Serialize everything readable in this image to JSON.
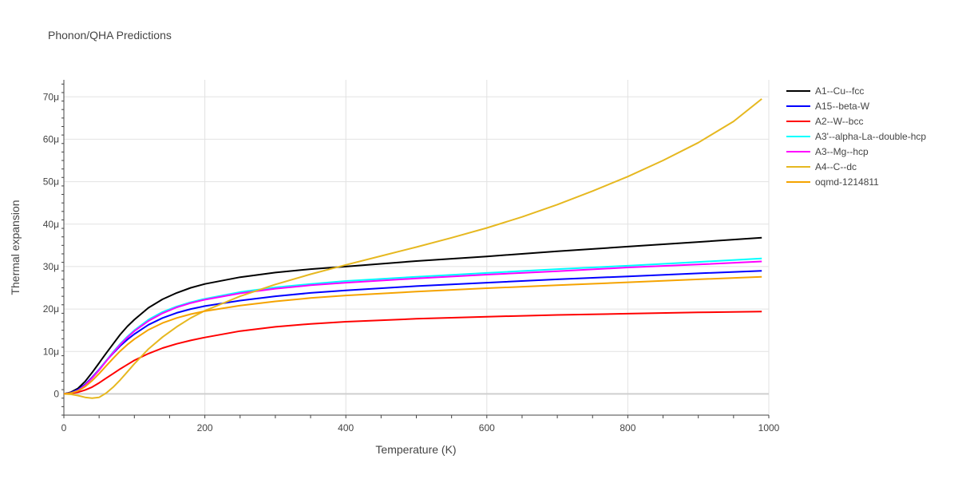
{
  "chart_data": {
    "type": "line",
    "title": "Phonon/QHA Predictions",
    "xlabel": "Temperature (K)",
    "ylabel": "Thermal expansion",
    "xlim": [
      0,
      1000
    ],
    "ylim": [
      -5,
      74
    ],
    "x_ticks": [
      0,
      200,
      400,
      600,
      800,
      1000
    ],
    "y_ticks": [
      0,
      10,
      20,
      30,
      40,
      50,
      60,
      70
    ],
    "y_tick_labels": [
      "0",
      "10μ",
      "20μ",
      "30μ",
      "40μ",
      "50μ",
      "60μ",
      "70μ"
    ],
    "grid": true,
    "legend_position": "right",
    "series": [
      {
        "name": "A1--Cu--fcc",
        "color": "#000000",
        "x": [
          0,
          10,
          20,
          30,
          40,
          50,
          60,
          70,
          80,
          90,
          100,
          120,
          140,
          160,
          180,
          200,
          250,
          300,
          350,
          400,
          500,
          600,
          700,
          800,
          900,
          990
        ],
        "y": [
          0,
          0.4,
          1.3,
          2.9,
          5,
          7.3,
          9.6,
          11.8,
          14,
          15.9,
          17.5,
          20.3,
          22.3,
          23.8,
          25,
          25.9,
          27.5,
          28.6,
          29.4,
          30.0,
          31.3,
          32.4,
          33.6,
          34.7,
          35.8,
          36.8
        ]
      },
      {
        "name": "A15--beta-W",
        "color": "#0000ff",
        "x": [
          0,
          10,
          20,
          30,
          40,
          50,
          60,
          70,
          80,
          90,
          100,
          120,
          140,
          160,
          180,
          200,
          250,
          300,
          350,
          400,
          500,
          600,
          700,
          800,
          900,
          990
        ],
        "y": [
          0,
          0.3,
          1.0,
          2.2,
          3.9,
          5.8,
          7.8,
          9.6,
          11.3,
          12.8,
          14.1,
          16.3,
          17.9,
          19.1,
          20.0,
          20.7,
          22.0,
          23.0,
          23.8,
          24.4,
          25.4,
          26.2,
          27.0,
          27.7,
          28.4,
          29.0
        ]
      },
      {
        "name": "A2--W--bcc",
        "color": "#ff0000",
        "x": [
          0,
          10,
          20,
          30,
          40,
          50,
          60,
          70,
          80,
          90,
          100,
          120,
          140,
          160,
          180,
          200,
          250,
          300,
          350,
          400,
          500,
          600,
          700,
          800,
          900,
          990
        ],
        "y": [
          0,
          0.1,
          0.4,
          0.9,
          1.6,
          2.6,
          3.7,
          4.8,
          5.9,
          6.9,
          7.9,
          9.5,
          10.8,
          11.8,
          12.6,
          13.3,
          14.8,
          15.8,
          16.5,
          17.0,
          17.7,
          18.2,
          18.6,
          18.9,
          19.2,
          19.4
        ]
      },
      {
        "name": "A3'--alpha-La--double-hcp",
        "color": "#00ffff",
        "x": [
          0,
          10,
          20,
          30,
          40,
          50,
          60,
          70,
          80,
          90,
          100,
          120,
          140,
          160,
          180,
          200,
          250,
          300,
          350,
          400,
          500,
          600,
          700,
          800,
          900,
          990
        ],
        "y": [
          0,
          0.2,
          0.8,
          2.0,
          3.7,
          5.7,
          7.8,
          9.9,
          11.8,
          13.5,
          15.0,
          17.5,
          19.3,
          20.6,
          21.6,
          22.4,
          24.0,
          25.1,
          25.9,
          26.6,
          27.6,
          28.5,
          29.4,
          30.2,
          31.1,
          31.9
        ]
      },
      {
        "name": "A3--Mg--hcp",
        "color": "#ff00ff",
        "x": [
          0,
          10,
          20,
          30,
          40,
          50,
          60,
          70,
          80,
          90,
          100,
          120,
          140,
          160,
          180,
          200,
          250,
          300,
          350,
          400,
          500,
          600,
          700,
          800,
          900,
          990
        ],
        "y": [
          0,
          0.2,
          0.8,
          2.0,
          3.7,
          5.6,
          7.7,
          9.7,
          11.6,
          13.3,
          14.8,
          17.2,
          19.0,
          20.4,
          21.4,
          22.2,
          23.7,
          24.8,
          25.6,
          26.2,
          27.2,
          28.1,
          28.9,
          29.8,
          30.5,
          31.2
        ]
      },
      {
        "name": "A4--C--dc",
        "color": "#e6b820",
        "x": [
          0,
          10,
          20,
          30,
          40,
          50,
          60,
          70,
          80,
          90,
          100,
          120,
          140,
          160,
          180,
          200,
          250,
          300,
          350,
          400,
          450,
          500,
          550,
          600,
          650,
          700,
          750,
          800,
          850,
          900,
          950,
          990
        ],
        "y": [
          0,
          -0.1,
          -0.4,
          -0.8,
          -1.0,
          -0.8,
          0.2,
          1.6,
          3.3,
          5.2,
          7.1,
          10.6,
          13.4,
          15.8,
          17.9,
          19.6,
          23.0,
          25.8,
          28.2,
          30.4,
          32.5,
          34.6,
          36.8,
          39.1,
          41.7,
          44.6,
          47.8,
          51.2,
          55.0,
          59.2,
          64.2,
          69.5
        ]
      },
      {
        "name": "oqmd-1214811",
        "color": "#f5a300",
        "x": [
          0,
          10,
          20,
          30,
          40,
          50,
          60,
          70,
          80,
          90,
          100,
          120,
          140,
          160,
          180,
          200,
          250,
          300,
          350,
          400,
          500,
          600,
          700,
          800,
          900,
          990
        ],
        "y": [
          0,
          0.2,
          0.7,
          1.7,
          3.1,
          4.8,
          6.6,
          8.4,
          10.1,
          11.6,
          12.9,
          15.1,
          16.7,
          17.9,
          18.8,
          19.5,
          20.8,
          21.8,
          22.6,
          23.2,
          24.1,
          24.9,
          25.6,
          26.3,
          27.0,
          27.6
        ]
      }
    ]
  }
}
